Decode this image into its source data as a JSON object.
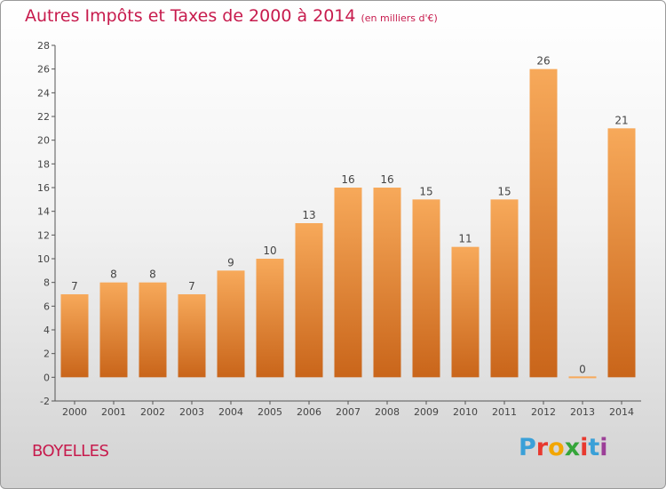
{
  "title": "Autres Impôts et Taxes de 2000 à 2014",
  "subtitle": "(en milliers d'€)",
  "commune": "BOYELLES",
  "brand": {
    "text": "Proxiti",
    "letter_colors": [
      "#3aa0d8",
      "#e8392f",
      "#f2a600",
      "#35a53a",
      "#e8392f",
      "#3aa0d8",
      "#9c3f98"
    ]
  },
  "colors": {
    "bar_top": "#f7a95a",
    "bar_bottom": "#c9651a",
    "title": "#c71b4d",
    "text": "#444444"
  },
  "chart_data": {
    "type": "bar",
    "title": "Autres Impôts et Taxes de 2000 à 2014",
    "subtitle": "(en milliers d'€)",
    "categories": [
      "2000",
      "2001",
      "2002",
      "2003",
      "2004",
      "2005",
      "2006",
      "2007",
      "2008",
      "2009",
      "2010",
      "2011",
      "2012",
      "2013",
      "2014"
    ],
    "values": [
      7,
      8,
      8,
      7,
      9,
      10,
      13,
      16,
      16,
      15,
      11,
      15,
      26,
      0,
      21
    ],
    "data_labels": [
      "7",
      "8",
      "8",
      "7",
      "9",
      "10",
      "13",
      "16",
      "16",
      "15",
      "11",
      "15",
      "26",
      "0",
      "21"
    ],
    "ylim": [
      -2,
      28
    ],
    "yticks": [
      -2,
      0,
      2,
      4,
      6,
      8,
      10,
      12,
      14,
      16,
      18,
      20,
      22,
      24,
      26,
      28
    ],
    "grid": false,
    "legend": "none"
  }
}
